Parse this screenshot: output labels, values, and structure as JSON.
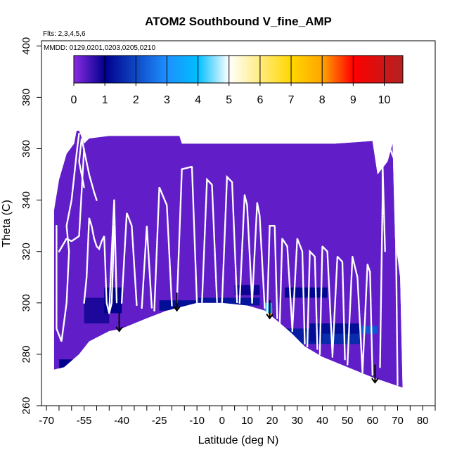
{
  "chart_data": {
    "type": "heatmap",
    "title": "ATOM2 Southbound V_fine_AMP",
    "notes": [
      "Flts: 2,3,4,5,6",
      "MMDD: 0129,0201,0203,0205,0210"
    ],
    "xlabel": "Latitude (deg N)",
    "ylabel": "Theta (C)",
    "xlim": [
      -72,
      85
    ],
    "ylim": [
      260,
      402
    ],
    "x_ticks": [
      -70,
      -55,
      -40,
      -25,
      -10,
      0,
      10,
      20,
      30,
      40,
      50,
      60,
      70,
      80
    ],
    "x_minor_ticks": [
      -65,
      -60,
      -50,
      -45,
      -35,
      -30,
      -20,
      -15,
      -5,
      5,
      15,
      25,
      35,
      45,
      55,
      65,
      75,
      85
    ],
    "y_ticks": [
      260,
      280,
      300,
      320,
      340,
      360,
      380,
      400
    ],
    "colorbar": {
      "range": [
        0,
        10.6
      ],
      "ticks": [
        0,
        1,
        2,
        3,
        4,
        5,
        6,
        7,
        8,
        9,
        10
      ],
      "colors": [
        "#8a2be2",
        "#00008b",
        "#1e90ff",
        "#00bfff",
        "#ffffff",
        "#ffd700",
        "#ffa500",
        "#ff0000",
        "#b22222"
      ],
      "color_stops": [
        0,
        1,
        3,
        4,
        5,
        7,
        8,
        9,
        10.6
      ]
    },
    "domain_top": [
      [
        -67,
        336
      ],
      [
        -65,
        348
      ],
      [
        -62,
        358
      ],
      [
        -59,
        362
      ],
      [
        -58,
        367
      ],
      [
        -57,
        367
      ],
      [
        -55,
        362
      ],
      [
        -53,
        364
      ],
      [
        -45,
        365
      ],
      [
        -17,
        365
      ],
      [
        -16,
        362
      ],
      [
        45,
        362
      ],
      [
        60,
        363
      ],
      [
        62,
        350
      ],
      [
        66,
        355
      ],
      [
        68,
        362
      ],
      [
        69,
        325
      ],
      [
        71,
        310
      ]
    ],
    "domain_bottom": [
      [
        -67,
        274
      ],
      [
        -63,
        275
      ],
      [
        -57,
        280
      ],
      [
        -53,
        285
      ],
      [
        -45,
        289
      ],
      [
        -40,
        290
      ],
      [
        -30,
        294
      ],
      [
        -22,
        297
      ],
      [
        -10,
        300
      ],
      [
        0,
        300
      ],
      [
        10,
        299
      ],
      [
        17,
        297
      ],
      [
        22,
        293
      ],
      [
        28,
        288
      ],
      [
        33,
        283
      ],
      [
        40,
        279
      ],
      [
        50,
        275
      ],
      [
        60,
        271
      ],
      [
        72,
        267
      ]
    ],
    "background_value": 0.3,
    "patches": [
      {
        "x": [
          -55,
          -45
        ],
        "y": [
          292,
          302
        ],
        "value": 0.8
      },
      {
        "x": [
          -47,
          -40
        ],
        "y": [
          296,
          306
        ],
        "value": 1.0
      },
      {
        "x": [
          -25,
          -10
        ],
        "y": [
          297,
          301
        ],
        "value": 1.2
      },
      {
        "x": [
          -10,
          15
        ],
        "y": [
          299,
          302
        ],
        "value": 1.3
      },
      {
        "x": [
          5,
          15
        ],
        "y": [
          303,
          307
        ],
        "value": 0.9
      },
      {
        "x": [
          17,
          20
        ],
        "y": [
          293,
          298
        ],
        "value": 8.0
      },
      {
        "x": [
          17,
          20
        ],
        "y": [
          296,
          300
        ],
        "value": 3.5
      },
      {
        "x": [
          25,
          40
        ],
        "y": [
          284,
          290
        ],
        "value": 1.4
      },
      {
        "x": [
          35,
          55
        ],
        "y": [
          285,
          292
        ],
        "value": 1.2
      },
      {
        "x": [
          40,
          55
        ],
        "y": [
          284,
          288
        ],
        "value": 1.6
      },
      {
        "x": [
          25,
          42
        ],
        "y": [
          302,
          306
        ],
        "value": 1.1
      },
      {
        "x": [
          55,
          62
        ],
        "y": [
          288,
          291
        ],
        "value": 2.2
      },
      {
        "x": [
          -65,
          -58
        ],
        "y": [
          274,
          278
        ],
        "value": 1.0
      }
    ],
    "flight_tracks": [
      {
        "x": [
          -66,
          -66,
          -64,
          -62,
          -61,
          -62,
          -60,
          -58,
          -57
        ],
        "y": [
          330,
          290,
          285,
          300,
          320,
          330,
          340,
          358,
          366
        ]
      },
      {
        "x": [
          -65,
          -62,
          -60,
          -57,
          -55
        ],
        "y": [
          320,
          325,
          324,
          326,
          360
        ]
      },
      {
        "x": [
          -55,
          -54,
          -53,
          -52,
          -51,
          -50,
          -49,
          -48,
          -47,
          -46,
          -45,
          -44,
          -43
        ],
        "y": [
          300,
          310,
          333,
          330,
          325,
          322,
          321,
          324,
          326,
          300,
          296,
          300,
          330
        ]
      },
      {
        "x": [
          -55,
          -57,
          -56,
          -53,
          -51,
          -50
        ],
        "y": [
          345,
          355,
          364,
          350,
          343,
          340
        ]
      },
      {
        "x": [
          -45,
          -44,
          -43,
          -42
        ],
        "y": [
          296,
          320,
          340,
          300
        ]
      },
      {
        "x": [
          -40,
          -38,
          -36,
          -34
        ],
        "y": [
          300,
          335,
          330,
          299
        ]
      },
      {
        "x": [
          -32,
          -30,
          -28
        ],
        "y": [
          298,
          330,
          298
        ]
      },
      {
        "x": [
          -27,
          -25,
          -22,
          -20
        ],
        "y": [
          297,
          345,
          338,
          299
        ]
      },
      {
        "x": [
          -18,
          -16,
          -12,
          -10
        ],
        "y": [
          300,
          352,
          353,
          300
        ]
      },
      {
        "x": [
          -8,
          -6,
          -4,
          -2
        ],
        "y": [
          300,
          348,
          346,
          300
        ]
      },
      {
        "x": [
          0,
          2,
          4,
          6
        ],
        "y": [
          300,
          349,
          347,
          300
        ]
      },
      {
        "x": [
          7,
          9,
          10,
          12
        ],
        "y": [
          300,
          342,
          338,
          300
        ]
      },
      {
        "x": [
          12,
          14,
          15,
          17
        ],
        "y": [
          300,
          339,
          334,
          298
        ]
      },
      {
        "x": [
          18,
          19,
          21,
          22
        ],
        "y": [
          296,
          330,
          330,
          294
        ]
      },
      {
        "x": [
          23,
          24,
          26,
          28
        ],
        "y": [
          292,
          325,
          322,
          290
        ]
      },
      {
        "x": [
          28,
          30,
          32,
          33
        ],
        "y": [
          289,
          325,
          320,
          284
        ]
      },
      {
        "x": [
          34,
          35,
          37,
          38
        ],
        "y": [
          283,
          320,
          318,
          282
        ]
      },
      {
        "x": [
          39,
          40,
          42,
          44
        ],
        "y": [
          280,
          322,
          320,
          280
        ]
      },
      {
        "x": [
          44,
          46,
          48,
          49
        ],
        "y": [
          279,
          318,
          316,
          278
        ]
      },
      {
        "x": [
          50,
          52,
          54,
          56
        ],
        "y": [
          276,
          318,
          310,
          273
        ]
      },
      {
        "x": [
          56,
          58,
          59,
          60
        ],
        "y": [
          273,
          315,
          312,
          272
        ]
      },
      {
        "x": [
          63,
          64,
          64,
          65
        ],
        "y": [
          275,
          340,
          355,
          320
        ]
      },
      {
        "x": [
          66,
          67,
          69,
          70
        ],
        "y": [
          356,
          360,
          355,
          268
        ]
      }
    ],
    "arrows": [
      {
        "x": -41,
        "y_from": 296,
        "y_to": 289
      },
      {
        "x": -18,
        "y_from": 304,
        "y_to": 297
      },
      {
        "x": 19,
        "y_from": 301,
        "y_to": 294
      },
      {
        "x": 61,
        "y_from": 276,
        "y_to": 269
      }
    ]
  }
}
